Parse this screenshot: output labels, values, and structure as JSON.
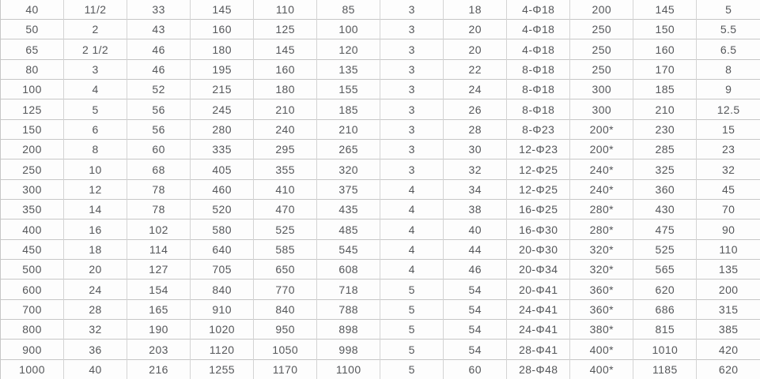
{
  "colors": {
    "text": "#55575a",
    "grid_horizontal": "#c7c7c7",
    "grid_vertical": "#d4d4d4",
    "cell_background": "#fdfdfd"
  },
  "chart_data": {
    "type": "table",
    "title": "",
    "columns_count": 12,
    "rows": [
      [
        "40",
        "11/2",
        "33",
        "145",
        "110",
        "85",
        "3",
        "18",
        "4-Φ18",
        "200",
        "145",
        "5"
      ],
      [
        "50",
        "2",
        "43",
        "160",
        "125",
        "100",
        "3",
        "20",
        "4-Φ18",
        "250",
        "150",
        "5.5"
      ],
      [
        "65",
        "2 1/2",
        "46",
        "180",
        "145",
        "120",
        "3",
        "20",
        "4-Φ18",
        "250",
        "160",
        "6.5"
      ],
      [
        "80",
        "3",
        "46",
        "195",
        "160",
        "135",
        "3",
        "22",
        "8-Φ18",
        "250",
        "170",
        "8"
      ],
      [
        "100",
        "4",
        "52",
        "215",
        "180",
        "155",
        "3",
        "24",
        "8-Φ18",
        "300",
        "185",
        "9"
      ],
      [
        "125",
        "5",
        "56",
        "245",
        "210",
        "185",
        "3",
        "26",
        "8-Φ18",
        "300",
        "210",
        "12.5"
      ],
      [
        "150",
        "6",
        "56",
        "280",
        "240",
        "210",
        "3",
        "28",
        "8-Φ23",
        "200*",
        "230",
        "15"
      ],
      [
        "200",
        "8",
        "60",
        "335",
        "295",
        "265",
        "3",
        "30",
        "12-Φ23",
        "200*",
        "285",
        "23"
      ],
      [
        "250",
        "10",
        "68",
        "405",
        "355",
        "320",
        "3",
        "32",
        "12-Φ25",
        "240*",
        "325",
        "32"
      ],
      [
        "300",
        "12",
        "78",
        "460",
        "410",
        "375",
        "4",
        "34",
        "12-Φ25",
        "240*",
        "360",
        "45"
      ],
      [
        "350",
        "14",
        "78",
        "520",
        "470",
        "435",
        "4",
        "38",
        "16-Φ25",
        "280*",
        "430",
        "70"
      ],
      [
        "400",
        "16",
        "102",
        "580",
        "525",
        "485",
        "4",
        "40",
        "16-Φ30",
        "280*",
        "475",
        "90"
      ],
      [
        "450",
        "18",
        "114",
        "640",
        "585",
        "545",
        "4",
        "44",
        "20-Φ30",
        "320*",
        "525",
        "110"
      ],
      [
        "500",
        "20",
        "127",
        "705",
        "650",
        "608",
        "4",
        "46",
        "20-Φ34",
        "320*",
        "565",
        "135"
      ],
      [
        "600",
        "24",
        "154",
        "840",
        "770",
        "718",
        "5",
        "54",
        "20-Φ41",
        "360*",
        "620",
        "200"
      ],
      [
        "700",
        "28",
        "165",
        "910",
        "840",
        "788",
        "5",
        "54",
        "24-Φ41",
        "360*",
        "686",
        "315"
      ],
      [
        "800",
        "32",
        "190",
        "1020",
        "950",
        "898",
        "5",
        "54",
        "24-Φ41",
        "380*",
        "815",
        "385"
      ],
      [
        "900",
        "36",
        "203",
        "1120",
        "1050",
        "998",
        "5",
        "54",
        "28-Φ41",
        "400*",
        "1010",
        "420"
      ],
      [
        "1000",
        "40",
        "216",
        "1255",
        "1170",
        "1100",
        "5",
        "60",
        "28-Φ48",
        "400*",
        "1185",
        "620"
      ]
    ]
  }
}
